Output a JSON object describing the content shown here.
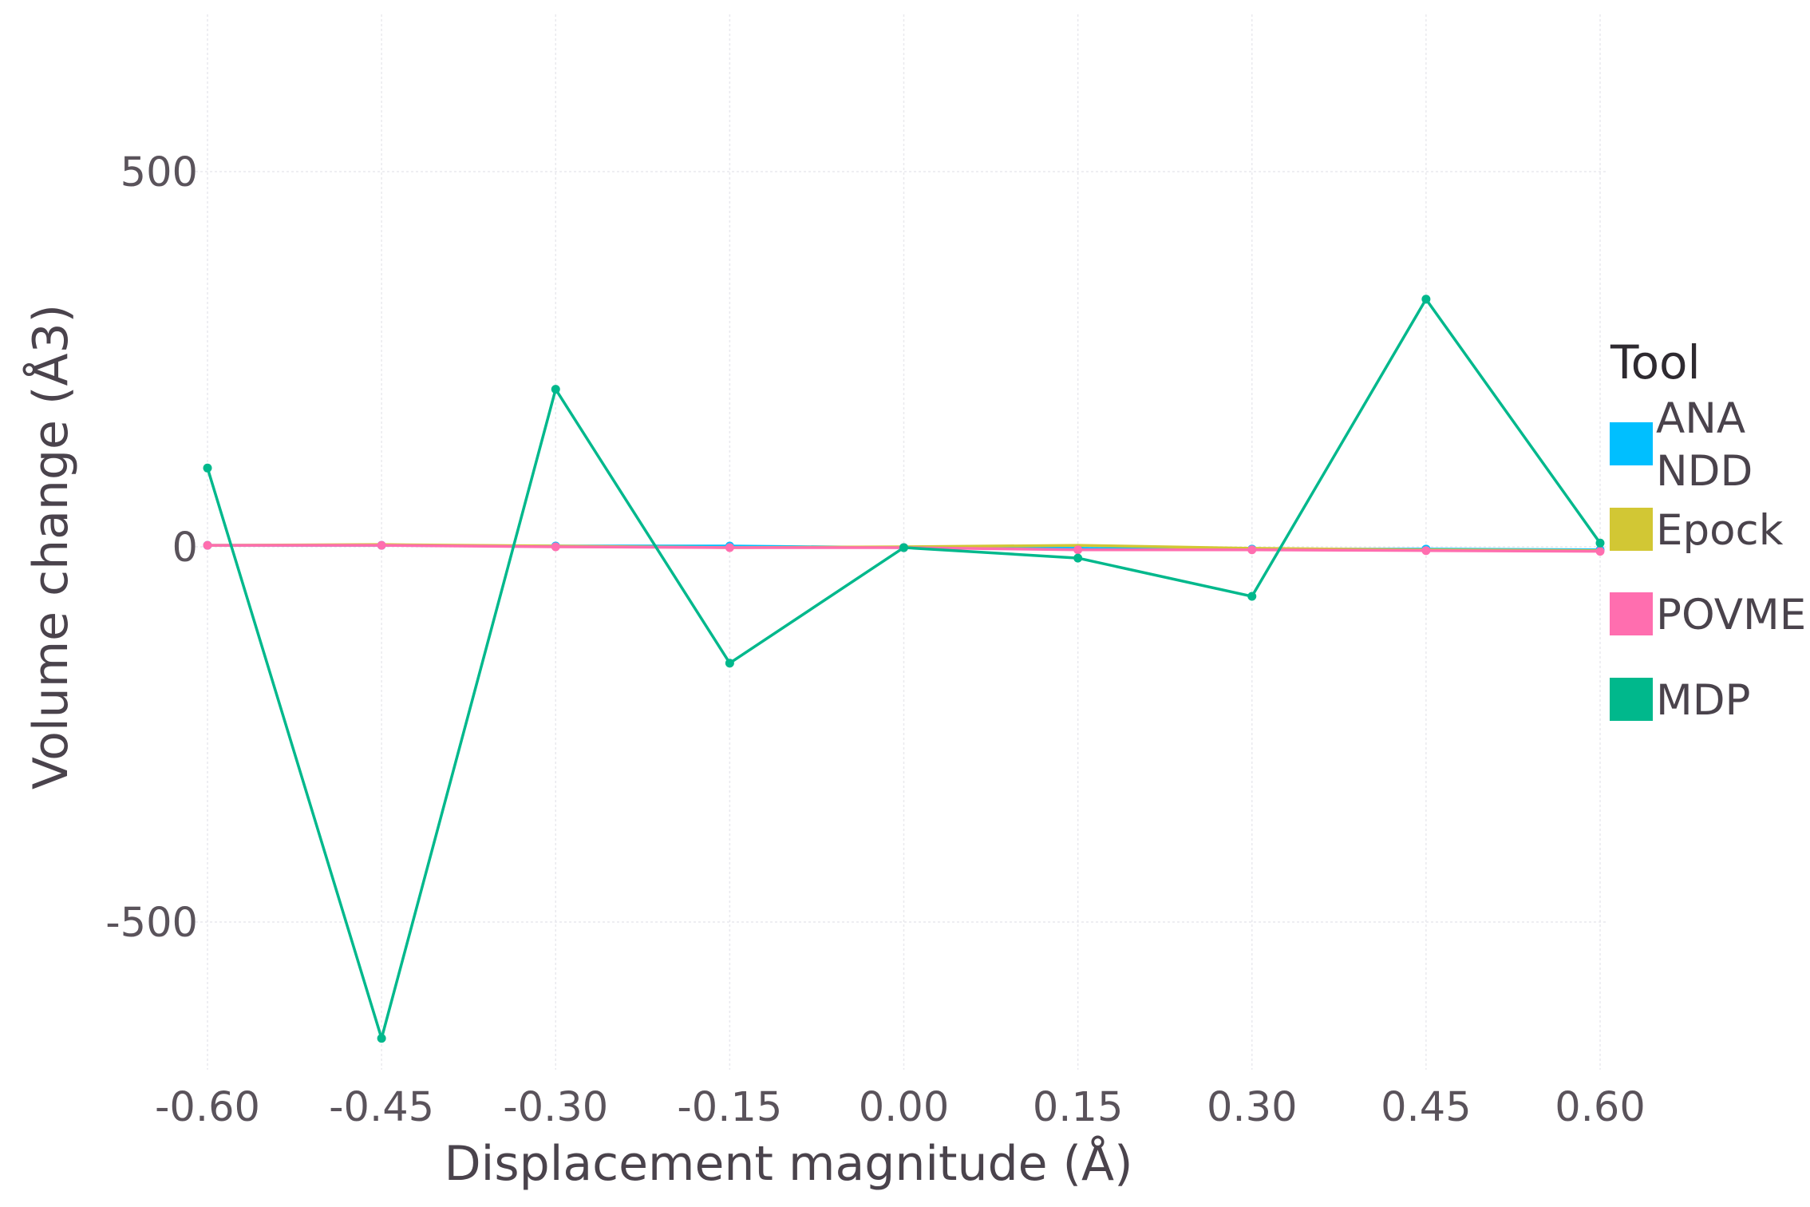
{
  "chart_data": {
    "type": "line",
    "xlabel": "Displacement magnitude (Å)",
    "ylabel": "Volume change (Å3)",
    "x": [
      -0.6,
      -0.45,
      -0.3,
      -0.15,
      0.0,
      0.15,
      0.3,
      0.45,
      0.6
    ],
    "x_tick_labels": [
      "-0.60",
      "-0.45",
      "-0.30",
      "-0.15",
      "0.00",
      "0.15",
      "0.30",
      "0.45",
      "0.60"
    ],
    "y_ticks": [
      500,
      0,
      -500
    ],
    "y_tick_labels": [
      "500",
      "0",
      "-500"
    ],
    "xlim": [
      -0.6,
      0.6
    ],
    "ylim": [
      -705,
      705
    ],
    "grid": true,
    "legend": {
      "title": "Tool",
      "placement": "right",
      "entries": [
        {
          "label_lines": [
            "ANA",
            "NDD"
          ],
          "color": "#00bfff"
        },
        {
          "label_lines": [
            "Epock"
          ],
          "color": "#d2c734"
        },
        {
          "label_lines": [
            "POVME"
          ],
          "color": "#ff6eaf"
        },
        {
          "label_lines": [
            "MDP"
          ],
          "color": "#00b88c"
        }
      ]
    },
    "series": [
      {
        "name": "ANANDD",
        "color": "#00bfff",
        "markers": true,
        "values": [
          2,
          2,
          1,
          1,
          -1,
          -2,
          -3,
          -3,
          -4
        ]
      },
      {
        "name": "Epock",
        "color": "#d2c734",
        "markers": false,
        "values": [
          2,
          3,
          1,
          -1,
          0,
          2,
          -2,
          -4,
          -5
        ]
      },
      {
        "name": "POVME",
        "color": "#ff6eaf",
        "markers": true,
        "values": [
          2,
          2,
          0,
          -1,
          -1,
          -4,
          -4,
          -5,
          -6
        ]
      },
      {
        "name": "MDP",
        "color": "#00b88c",
        "markers": true,
        "values": [
          105,
          -655,
          210,
          -155,
          -1,
          -15,
          -66,
          330,
          5
        ]
      }
    ]
  }
}
